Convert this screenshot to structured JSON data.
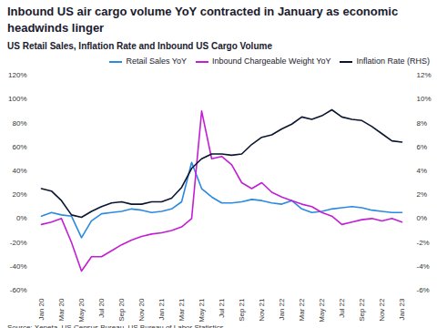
{
  "chart_data": {
    "type": "line",
    "title": "Inbound US air cargo volume YoY contracted in January as economic headwinds linger",
    "subtitle": "US Retail Sales, Inflation Rate and Inbound US Cargo Volume",
    "caption": "Source: Xeneta, US Census Bureau, US Bureau of Labor Statistics",
    "categories": [
      "Jan 20",
      null,
      "Mar 20",
      null,
      "May 20",
      null,
      "Jul 20",
      null,
      "Sep 20",
      null,
      "Nov 20",
      null,
      "Jan 21",
      null,
      "Mar 21",
      null,
      "May 21",
      null,
      "Jul 21",
      null,
      "Sep 21",
      null,
      "Nov 21",
      null,
      "Jan 22",
      null,
      "Mar 22",
      null,
      "May 22",
      null,
      "Jul 22",
      null,
      "Sep 22",
      null,
      "Nov 22",
      null,
      "Jan 23"
    ],
    "series": [
      {
        "name": "Retail Sales YoY",
        "color": "#2a8ae0",
        "values": [
          2,
          5,
          3,
          2,
          -16,
          -2,
          4,
          5,
          6,
          8,
          7,
          5,
          6,
          8,
          14,
          47,
          25,
          18,
          13,
          13,
          14,
          16,
          15,
          13,
          12,
          15,
          8,
          5,
          6,
          8,
          9,
          10,
          9,
          7,
          6,
          5,
          5
        ]
      },
      {
        "name": "Inbound Chargeable Weight YoY",
        "color": "#c21fd4",
        "values": [
          -5,
          -3,
          0,
          -20,
          -44,
          -32,
          -32,
          -27,
          -22,
          -18,
          -15,
          -13,
          -12,
          -10,
          -7,
          0,
          90,
          50,
          52,
          45,
          30,
          25,
          30,
          22,
          18,
          15,
          12,
          10,
          5,
          2,
          -5,
          -3,
          -1,
          0,
          -2,
          0,
          -3
        ]
      },
      {
        "name": "Inflation Rate (RHS)",
        "color": "#0b1530",
        "axis": "y2",
        "values": [
          2.5,
          2.3,
          1.5,
          0.3,
          0.1,
          0.6,
          1.0,
          1.3,
          1.4,
          1.2,
          1.2,
          1.4,
          1.4,
          1.7,
          2.6,
          4.2,
          5.0,
          5.4,
          5.4,
          5.3,
          5.4,
          6.2,
          6.8,
          7.0,
          7.5,
          7.9,
          8.5,
          8.3,
          8.6,
          9.1,
          8.5,
          8.3,
          8.2,
          7.7,
          7.1,
          6.5,
          6.4
        ]
      }
    ],
    "ylim": [
      -60,
      120
    ],
    "yticks": [
      {
        "value": -60,
        "label": "-60%"
      },
      {
        "value": -40,
        "label": "-40%"
      },
      {
        "value": -20,
        "label": "-20%"
      },
      {
        "value": 0,
        "label": "0%"
      },
      {
        "value": 20,
        "label": "20%"
      },
      {
        "value": 40,
        "label": "40%"
      },
      {
        "value": 60,
        "label": "60%"
      },
      {
        "value": 80,
        "label": "80%"
      },
      {
        "value": 100,
        "label": "100%"
      },
      {
        "value": 120,
        "label": "120%"
      }
    ],
    "y2lim": [
      -6,
      12
    ],
    "y2ticks": [
      {
        "value": -6,
        "label": "-6%"
      },
      {
        "value": -4,
        "label": "-4%"
      },
      {
        "value": -2,
        "label": "-2%"
      },
      {
        "value": 0,
        "label": "0%"
      },
      {
        "value": 2,
        "label": "2%"
      },
      {
        "value": 4,
        "label": "4%"
      },
      {
        "value": 6,
        "label": "6%"
      },
      {
        "value": 8,
        "label": "8%"
      },
      {
        "value": 10,
        "label": "10%"
      },
      {
        "value": 12,
        "label": "12%"
      }
    ],
    "legend": "top"
  }
}
